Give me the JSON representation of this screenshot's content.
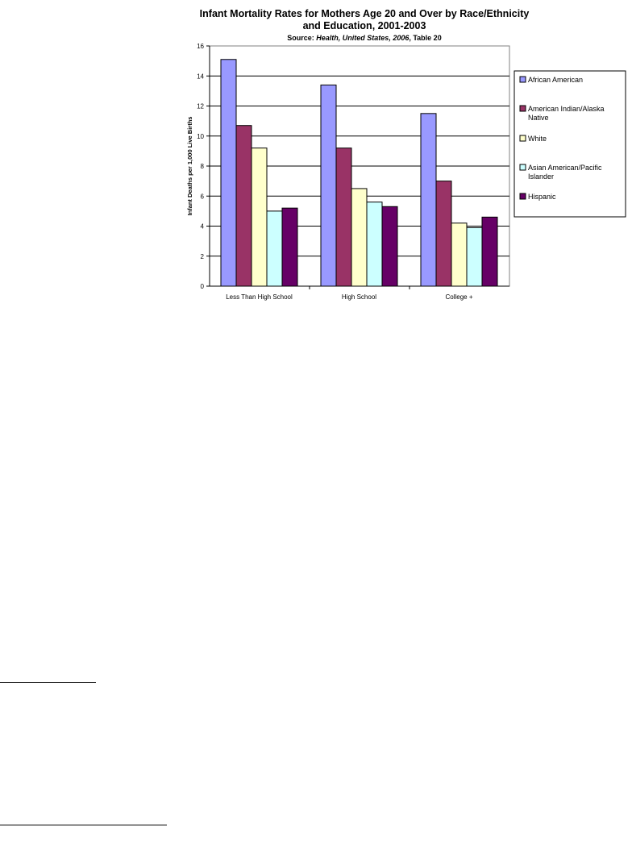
{
  "chart_data": {
    "type": "bar",
    "title_line1": "Infant Mortality Rates for Mothers Age 20 and Over by Race/Ethnicity",
    "title_line2": "and Education, 2001-2003",
    "source_prefix": "Source:  ",
    "source_italic": "Health, United States, 2006",
    "source_suffix": ", Table 20",
    "ylabel": "Infant Deaths  per 1,000 Live Births",
    "xlabel": "",
    "ylim": [
      0,
      16
    ],
    "yticks": [
      "0",
      "2",
      "4",
      "6",
      "8",
      "10",
      "12",
      "14",
      "16"
    ],
    "grid": true,
    "legend_position": "right",
    "categories": [
      "Less Than High School",
      "High School",
      "College +"
    ],
    "series": [
      {
        "name_lines": [
          "African American"
        ],
        "color": "#9999ff",
        "values": [
          15.1,
          13.4,
          11.5
        ]
      },
      {
        "name_lines": [
          "American Indian/Alaska",
          "Native"
        ],
        "color": "#993366",
        "values": [
          10.7,
          9.2,
          7.0
        ]
      },
      {
        "name_lines": [
          "White"
        ],
        "color": "#ffffcc",
        "values": [
          9.2,
          6.5,
          4.2
        ]
      },
      {
        "name_lines": [
          "Asian American/Pacific",
          "Islander"
        ],
        "color": "#ccffff",
        "values": [
          5.0,
          5.6,
          3.9
        ]
      },
      {
        "name_lines": [
          "Hispanic"
        ],
        "color": "#660066",
        "values": [
          5.2,
          5.3,
          4.6
        ]
      }
    ]
  }
}
